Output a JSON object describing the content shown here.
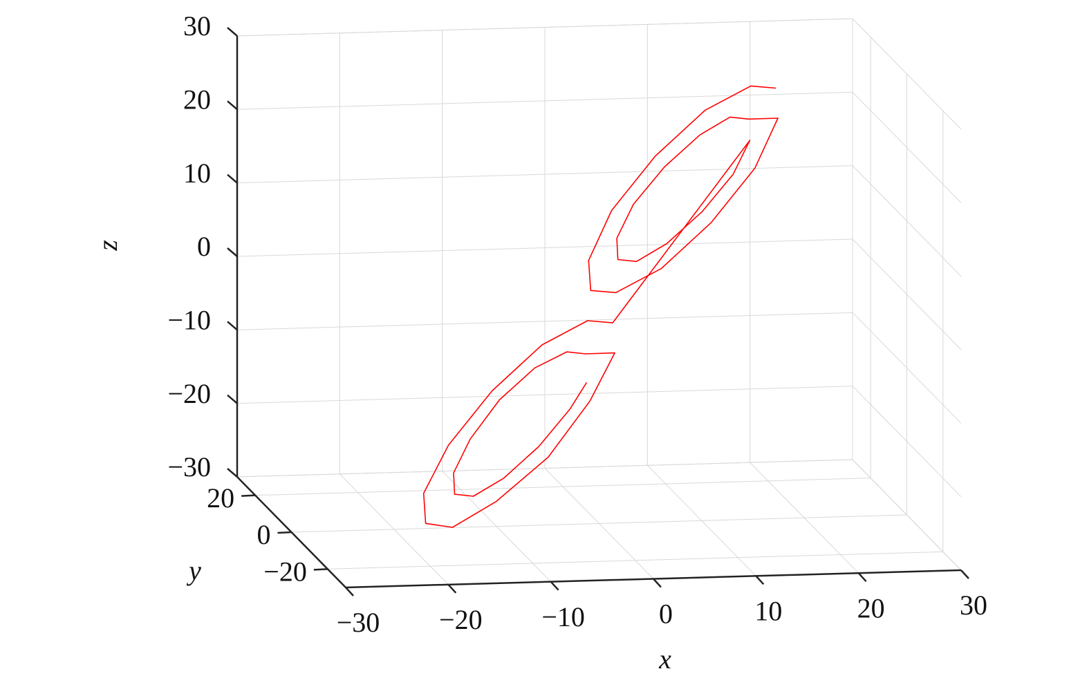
{
  "chart_data": {
    "type": "line3d",
    "x_label": "x",
    "y_label": "y",
    "z_label": "z",
    "color": "#ff0000",
    "grid": true,
    "xlim": [
      -30,
      30
    ],
    "ylim": [
      -30,
      30
    ],
    "zlim": [
      -30,
      30
    ],
    "xticks": [
      {
        "value": -30,
        "label": "−30"
      },
      {
        "value": -20,
        "label": "−20"
      },
      {
        "value": -10,
        "label": "−10"
      },
      0,
      10,
      20,
      30
    ],
    "yticks": [
      {
        "value": -20,
        "label": "−20"
      },
      0,
      20
    ],
    "zticks": [
      {
        "value": -30,
        "label": "−30"
      },
      {
        "value": -20,
        "label": "−20"
      },
      {
        "value": -10,
        "label": "−10"
      },
      0,
      10,
      20,
      30
    ],
    "x": [
      19,
      16.2,
      11.4,
      6,
      1.4,
      -1.2,
      -1,
      1.8,
      6.6,
      12,
      16.6,
      19.2,
      16,
      14,
      10.7,
      6.9,
      3.7,
      1.9,
      2,
      4,
      7.3,
      11.1,
      14.3,
      16.1,
      1.5,
      -1.3,
      -6.1,
      -11.5,
      -16.1,
      -18.7,
      -18.5,
      -15.7,
      -10.9,
      -5.5,
      -0.9,
      1.7,
      -1.5,
      -3.5,
      -6.8,
      -10.6,
      -13.8,
      -15.6,
      -15.5,
      -13.5,
      -10.2,
      -6.4,
      -3.2,
      -1.4
    ],
    "y": [
      10,
      8,
      6,
      3,
      1,
      -1,
      -1,
      1,
      3,
      6,
      8,
      10,
      8,
      7,
      5,
      3,
      2,
      1,
      1,
      2,
      4,
      6,
      7,
      8,
      1,
      -1,
      -3,
      -6,
      -8,
      -9,
      -9,
      -8,
      -5,
      -3,
      0,
      1,
      -1,
      -2,
      -3,
      -5,
      -7,
      -8,
      -8,
      -7,
      -5,
      -3,
      -2,
      -1
    ],
    "z": [
      26,
      26.9,
      24.3,
      19,
      12.3,
      6.1,
      2,
      1.1,
      3.7,
      9,
      15.7,
      21.9,
      22.4,
      23,
      21.2,
      17.5,
      12.8,
      8.5,
      5.6,
      5,
      6.8,
      10.5,
      15.2,
      19.5,
      -3,
      -2.1,
      -4.7,
      -10,
      -16.7,
      -22.9,
      -27,
      -27.9,
      -25.3,
      -20,
      -13.3,
      -7.1,
      -6.6,
      -6,
      -7.8,
      -11.5,
      -16.2,
      -20.5,
      -23.4,
      -24,
      -22.2,
      -18.5,
      -13.8,
      -10.5
    ]
  }
}
